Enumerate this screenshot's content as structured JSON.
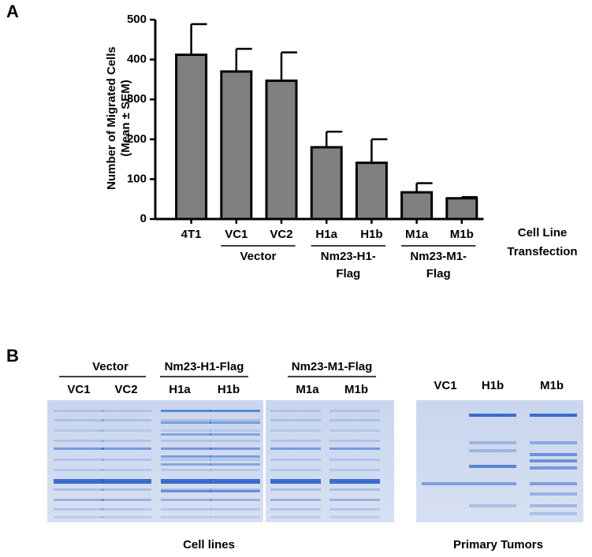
{
  "chart_data": {
    "type": "bar",
    "panel_label": "A",
    "ylabel": [
      "Number of Migrated Cells",
      "(Mean ± SEM)"
    ],
    "xlabel": [
      "Cell Line",
      "Transfection"
    ],
    "categories": [
      "4T1",
      "VC1",
      "VC2",
      "H1a",
      "H1b",
      "M1a",
      "M1b"
    ],
    "values": [
      412,
      370,
      347,
      180,
      141,
      67,
      52
    ],
    "errors": [
      77,
      57,
      71,
      39,
      59,
      23,
      3
    ],
    "groups": [
      [
        "Vector"
      ],
      [
        "Nm23-H1-",
        "Flag"
      ],
      [
        "Nm23-M1-",
        "Flag"
      ]
    ],
    "color": "#808080",
    "ylim": [
      0,
      500
    ],
    "yticks": [
      0,
      100,
      200,
      300,
      400,
      500
    ]
  },
  "panel_b": {
    "label": "B",
    "gel_groups": [
      {
        "name": "Vector",
        "lanes": [
          "VC1",
          "VC2"
        ]
      },
      {
        "name": "Nm23-H1-Flag",
        "lanes": [
          "H1a",
          "H1b"
        ]
      },
      {
        "name": "Nm23-M1-Flag",
        "lanes": [
          "M1a",
          "M1b"
        ]
      }
    ],
    "gel_caption": "Cell lines",
    "tumor_lanes": [
      "VC1",
      "H1b",
      "M1b"
    ],
    "tumor_caption": "Primary Tumors"
  }
}
